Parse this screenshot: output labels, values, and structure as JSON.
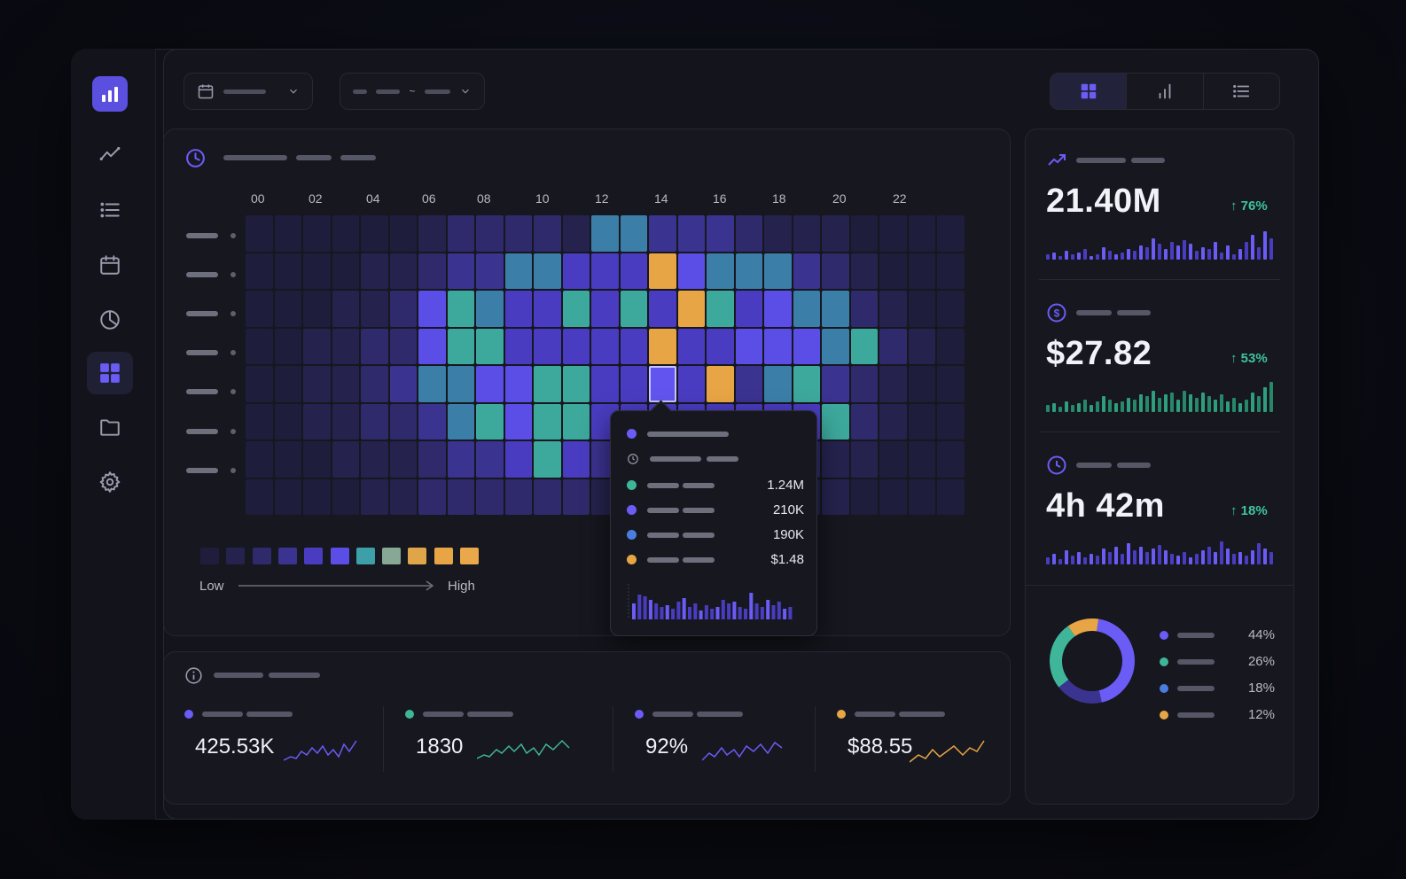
{
  "colors": {
    "accent": "#6a5cf5",
    "teal": "#3fc3a0",
    "blue": "#4a7de0",
    "orange": "#e8a545",
    "up": "#3fc3a0"
  },
  "sidebar": {
    "items": [
      {
        "icon": "trend-line-icon"
      },
      {
        "icon": "list-icon"
      },
      {
        "icon": "calendar-icon"
      },
      {
        "icon": "pie-chart-icon"
      },
      {
        "icon": "grid-icon",
        "active": true
      },
      {
        "icon": "folder-icon"
      },
      {
        "icon": "settings-icon"
      }
    ]
  },
  "toolbar": {
    "date_dropdown_icon": "calendar-icon",
    "range_separator": "~",
    "view_options": [
      "grid-view",
      "bar-view",
      "list-view"
    ]
  },
  "heatmap": {
    "hours": [
      "00",
      "02",
      "04",
      "06",
      "08",
      "10",
      "12",
      "14",
      "16",
      "18",
      "20",
      "22"
    ],
    "legend_low": "Low",
    "legend_high": "High",
    "levels": [
      [
        0,
        0,
        0,
        0,
        0,
        0,
        1,
        2,
        2,
        2,
        2,
        1,
        6,
        6,
        3,
        3,
        3,
        2,
        1,
        1,
        1,
        0,
        0,
        0,
        0
      ],
      [
        0,
        0,
        0,
        0,
        1,
        1,
        2,
        3,
        3,
        6,
        6,
        4,
        4,
        4,
        10,
        5,
        6,
        6,
        6,
        3,
        2,
        1,
        0,
        0,
        0
      ],
      [
        0,
        0,
        0,
        1,
        1,
        2,
        5,
        7,
        6,
        4,
        4,
        7,
        4,
        7,
        4,
        10,
        7,
        4,
        5,
        6,
        6,
        2,
        1,
        0,
        0
      ],
      [
        0,
        0,
        1,
        1,
        2,
        2,
        5,
        7,
        7,
        4,
        4,
        4,
        4,
        4,
        10,
        4,
        4,
        5,
        5,
        5,
        6,
        7,
        2,
        1,
        0
      ],
      [
        0,
        0,
        1,
        1,
        2,
        3,
        6,
        6,
        5,
        5,
        7,
        7,
        4,
        4,
        4,
        4,
        10,
        3,
        6,
        7,
        3,
        2,
        1,
        0,
        0
      ],
      [
        0,
        0,
        1,
        1,
        2,
        2,
        3,
        6,
        7,
        5,
        7,
        7,
        4,
        4,
        4,
        4,
        4,
        4,
        4,
        4,
        7,
        2,
        1,
        0,
        0
      ],
      [
        0,
        0,
        0,
        1,
        1,
        1,
        2,
        3,
        3,
        4,
        7,
        4,
        3,
        3,
        3,
        3,
        3,
        3,
        2,
        2,
        1,
        1,
        0,
        0,
        0
      ],
      [
        0,
        0,
        0,
        0,
        1,
        1,
        2,
        2,
        2,
        2,
        2,
        2,
        1,
        1,
        1,
        1,
        1,
        1,
        1,
        1,
        1,
        0,
        0,
        0,
        0
      ]
    ],
    "selected_cell": [
      4,
      14
    ]
  },
  "tooltip": {
    "rows": [
      {
        "dot": "#6a5cf5",
        "value": "1.24M",
        "swatch": "teal"
      },
      {
        "dot": "#6a5cf5",
        "value": "210K"
      },
      {
        "dot": "#4a7de0",
        "value": "190K"
      },
      {
        "dot": "#e8a545",
        "value": "$1.48"
      }
    ],
    "values": [
      "1.24M",
      "210K",
      "190K",
      "$1.48"
    ]
  },
  "metrics": [
    {
      "icon": "trend-up-icon",
      "value": "21.40M",
      "change": "↑ 76%",
      "color": "#6a5cf5"
    },
    {
      "icon": "dollar-icon",
      "value": "$27.82",
      "change": "↑ 53%",
      "color": "#2f9e7f"
    },
    {
      "icon": "clock-icon",
      "value": "4h 42m",
      "change": "↑ 18%",
      "color": "#6a5cf5"
    }
  ],
  "donut": {
    "segments": [
      {
        "pct": 44,
        "label": "44%",
        "color": "#6a5cf5"
      },
      {
        "pct": 26,
        "label": "26%",
        "color": "#3fb59a"
      },
      {
        "pct": 18,
        "label": "18%",
        "color": "#4a7de0"
      },
      {
        "pct": 12,
        "label": "12%",
        "color": "#e8a545"
      }
    ]
  },
  "stats": [
    {
      "value": "425.53K",
      "dot": "#6a5cf5",
      "line": "#6a5cf5"
    },
    {
      "value": "1830",
      "dot": "#3fb59a",
      "line": "#3fb59a"
    },
    {
      "value": "92%",
      "dot": "#6a5cf5",
      "line": "#6a5cf5"
    },
    {
      "value": "$88.55",
      "dot": "#e8a545",
      "line": "#e8a545"
    }
  ]
}
